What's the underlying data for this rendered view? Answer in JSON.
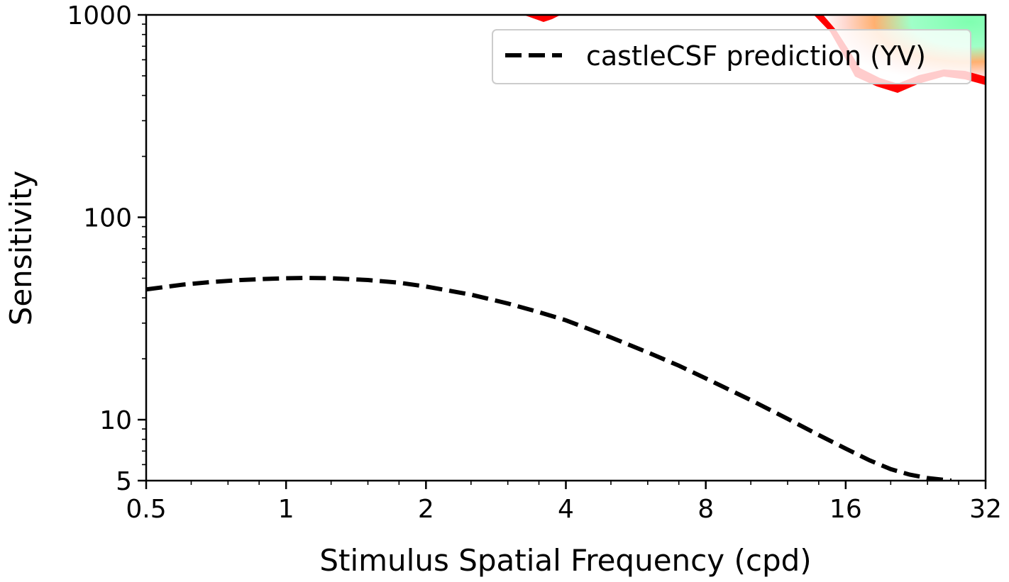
{
  "chart_data": {
    "type": "line",
    "xlabel": "Stimulus Spatial Frequency (cpd)",
    "ylabel": "Sensitivity",
    "x_scale": "log2",
    "y_scale": "log10",
    "xlim": [
      0.5,
      32
    ],
    "ylim": [
      5,
      1000
    ],
    "x_ticks": [
      0.5,
      1,
      2,
      4,
      8,
      16,
      32
    ],
    "x_tick_labels": [
      "0.5",
      "1",
      "2",
      "4",
      "8",
      "16",
      "32"
    ],
    "y_ticks": [
      5,
      10,
      100,
      1000
    ],
    "y_tick_labels": [
      "5",
      "10",
      "100",
      "1000"
    ],
    "grid": false,
    "legend_position": "top-right",
    "series": [
      {
        "name": "castleCSF prediction (YV)",
        "style": "dashed",
        "color": "#000000",
        "x": [
          0.5,
          0.6,
          0.7,
          0.8,
          0.9,
          1.0,
          1.1,
          1.25,
          1.5,
          1.75,
          2.0,
          2.5,
          3.0,
          3.5,
          4.0,
          5.0,
          6.0,
          7.0,
          8.0,
          10.0,
          12.0,
          14.0,
          16.0,
          18.0,
          20.0,
          22.0,
          24.0,
          26.0,
          27.0
        ],
        "y": [
          44,
          46.5,
          48.0,
          49.0,
          49.6,
          50.0,
          50.2,
          50.0,
          49.0,
          47.5,
          45.5,
          41.5,
          37.5,
          34.0,
          31.0,
          25.5,
          21.5,
          18.5,
          16.0,
          12.5,
          10.1,
          8.4,
          7.2,
          6.3,
          5.7,
          5.35,
          5.15,
          5.05,
          5.0
        ]
      }
    ],
    "colormap_patches": [
      {
        "region": "top edge near x=3.6",
        "colors": [
          "#ff0000"
        ]
      },
      {
        "region": "top-right corner",
        "colors": [
          "#ff0000",
          "#ffa060",
          "#7fffb0",
          "#ffffff"
        ]
      }
    ]
  }
}
